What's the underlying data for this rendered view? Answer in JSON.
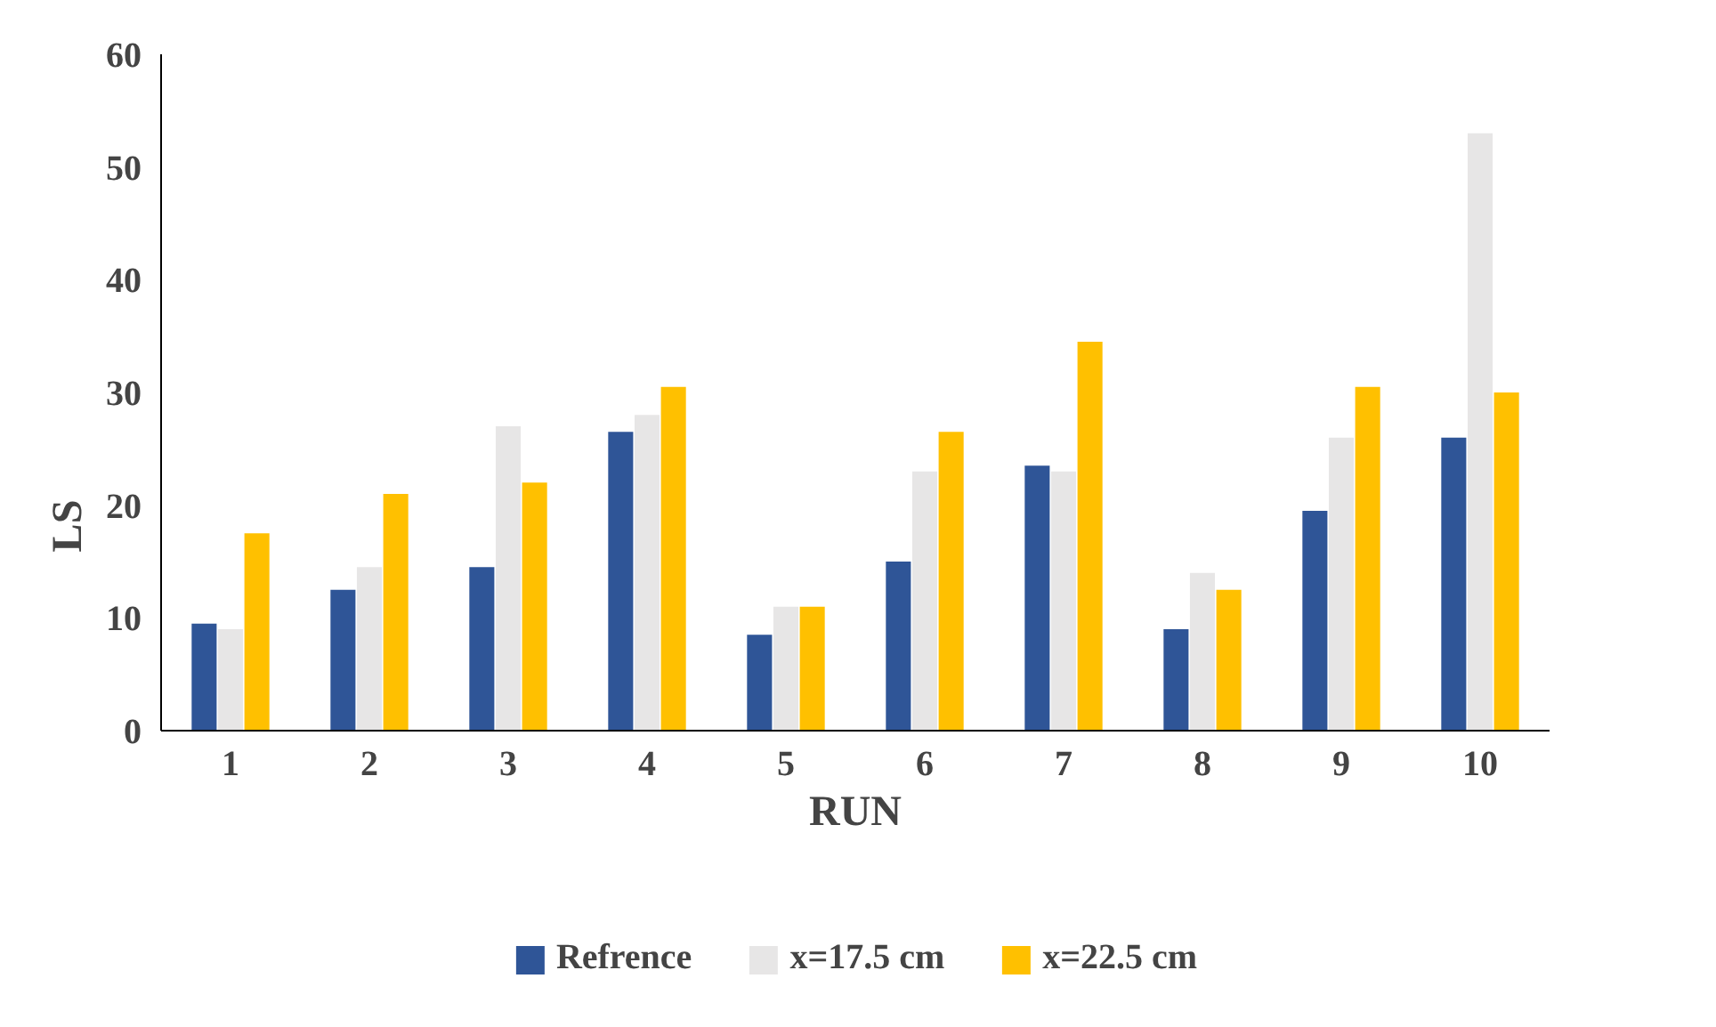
{
  "chart_data": {
    "type": "bar",
    "xlabel": "RUN",
    "ylabel": "LS",
    "categories": [
      "1",
      "2",
      "3",
      "4",
      "5",
      "6",
      "7",
      "8",
      "9",
      "10"
    ],
    "series": [
      {
        "name": "Refrence",
        "color": "#2f5597",
        "values": [
          9.5,
          12.5,
          14.5,
          26.5,
          8.5,
          15,
          23.5,
          9,
          19.5,
          26
        ]
      },
      {
        "name": "x=17.5 cm",
        "color": "#e7e6e6",
        "values": [
          9,
          14.5,
          27,
          28,
          11,
          23,
          23,
          14,
          26,
          53
        ]
      },
      {
        "name": "x=22.5 cm",
        "color": "#ffc000",
        "values": [
          17.5,
          21,
          22,
          30.5,
          11,
          26.5,
          34.5,
          12.5,
          30.5,
          30
        ]
      }
    ],
    "ylim": [
      0,
      60
    ],
    "yticks": [
      0,
      10,
      20,
      30,
      40,
      50,
      60
    ],
    "grid": false,
    "legend": "bottom"
  }
}
